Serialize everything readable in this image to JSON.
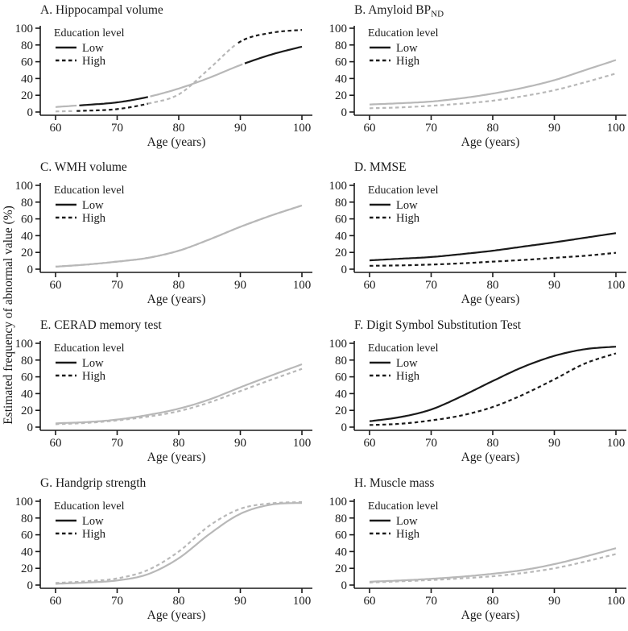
{
  "figure": {
    "y_axis_label": "Estimated frequency of abnormal value (%)",
    "x_axis_label": "Age (years)",
    "legend_title": "Education level",
    "series_labels": {
      "low": "Low",
      "high": "High"
    },
    "colors": {
      "black": "#1a1a1a",
      "gray": "#b8b8b8",
      "background": "#ffffff",
      "text": "#1a1a1a"
    }
  },
  "chart_data": {
    "type": "line",
    "layout": "4x2-small-multiples",
    "shared": {
      "xlabel": "Age (years)",
      "ylabel": "Estimated frequency of abnormal value (%)",
      "ages": [
        60,
        65,
        70,
        75,
        80,
        85,
        90,
        95,
        100
      ],
      "x_ticks": [
        60,
        70,
        80,
        90,
        100
      ],
      "y_ticks": [
        0,
        20,
        40,
        60,
        80,
        100
      ],
      "xlim": [
        60,
        100
      ],
      "ylim": [
        0,
        100
      ],
      "grid": false,
      "legend": {
        "title": "Education level",
        "position": "top-left",
        "entries": [
          {
            "label": "Low",
            "line_style": "solid",
            "key_color": "black"
          },
          {
            "label": "High",
            "line_style": "dashed",
            "key_color": "black"
          }
        ]
      }
    },
    "panels": [
      {
        "id": "A",
        "title": "A. Hippocampal volume",
        "title_subscript": "",
        "series": [
          {
            "name": "Low",
            "line_style": "solid",
            "values": [
              6,
              8.5,
              11.5,
              18,
              28,
              41,
              56,
              68.5,
              78
            ],
            "color_segments": [
              {
                "from": 60,
                "to": 63.8,
                "color": "gray"
              },
              {
                "from": 63.8,
                "to": 75.2,
                "color": "black"
              },
              {
                "from": 75.2,
                "to": 90.5,
                "color": "gray"
              },
              {
                "from": 90.5,
                "to": 100,
                "color": "black"
              }
            ]
          },
          {
            "name": "High",
            "line_style": "dashed",
            "values": [
              0.7,
              1.6,
              3.5,
              10,
              21,
              52,
              84,
              94.5,
              98
            ],
            "color_segments": [
              {
                "from": 60,
                "to": 63.2,
                "color": "gray"
              },
              {
                "from": 63.2,
                "to": 75,
                "color": "black"
              },
              {
                "from": 75,
                "to": 89.3,
                "color": "gray"
              },
              {
                "from": 89.3,
                "to": 100,
                "color": "black"
              }
            ]
          }
        ]
      },
      {
        "id": "B",
        "title": "B. Amyloid BP",
        "title_subscript": "ND",
        "series": [
          {
            "name": "Low",
            "line_style": "solid",
            "color": "gray",
            "values": [
              9,
              10.5,
              12.5,
              16.5,
              22,
              29,
              38,
              50,
              62
            ]
          },
          {
            "name": "High",
            "line_style": "dashed",
            "color": "gray",
            "values": [
              4.5,
              5.5,
              7.5,
              10,
              13.5,
              19,
              26,
              35.5,
              46
            ]
          }
        ]
      },
      {
        "id": "C",
        "title": "C. WMH volume",
        "title_subscript": "",
        "note": "High curve overlaps Low curve exactly",
        "series": [
          {
            "name": "Low",
            "line_style": "solid",
            "color": "gray",
            "values": [
              3,
              5.5,
              9,
              13.5,
              22,
              35.5,
              50.5,
              64,
              76
            ]
          },
          {
            "name": "High",
            "line_style": "dashed",
            "color": "gray",
            "values": [
              3,
              5.5,
              9,
              13.5,
              22,
              35.5,
              50.5,
              64,
              76
            ]
          }
        ]
      },
      {
        "id": "D",
        "title": "D. MMSE",
        "title_subscript": "",
        "series": [
          {
            "name": "Low",
            "line_style": "solid",
            "color": "black",
            "values": [
              10.5,
              12.5,
              14.5,
              18,
              22,
              27,
              32,
              37.5,
              43
            ]
          },
          {
            "name": "High",
            "line_style": "dashed",
            "color": "black",
            "values": [
              4,
              4.5,
              5.5,
              7,
              9,
              11,
              13.5,
              16,
              19.5
            ]
          }
        ]
      },
      {
        "id": "E",
        "title": "E. CERAD memory test",
        "title_subscript": "",
        "series": [
          {
            "name": "Low",
            "line_style": "solid",
            "color": "gray",
            "values": [
              4.5,
              6,
              9,
              14.5,
              22,
              33,
              47.5,
              61.5,
              75
            ]
          },
          {
            "name": "High",
            "line_style": "dashed",
            "color": "gray",
            "values": [
              3.5,
              5,
              8,
              12.5,
              19,
              29.5,
              43,
              56.5,
              69.5
            ]
          }
        ]
      },
      {
        "id": "F",
        "title": "F. Digit Symbol Substitution Test",
        "title_subscript": "",
        "series": [
          {
            "name": "Low",
            "line_style": "solid",
            "color": "black",
            "values": [
              7,
              12,
              21,
              37,
              55,
              72,
              85,
              93,
              96
            ]
          },
          {
            "name": "High",
            "line_style": "dashed",
            "color": "black",
            "values": [
              2.5,
              4,
              8,
              14,
              24,
              39,
              57,
              76,
              88
            ]
          }
        ]
      },
      {
        "id": "G",
        "title": "G. Handgrip strength",
        "title_subscript": "",
        "series": [
          {
            "name": "Low",
            "line_style": "solid",
            "color": "gray",
            "values": [
              1.5,
              3,
              5.5,
              13,
              32,
              61,
              85,
              96,
              98
            ]
          },
          {
            "name": "High",
            "line_style": "dashed",
            "color": "gray",
            "values": [
              2.5,
              4.5,
              8,
              18,
              40,
              71,
              91,
              97.5,
              99
            ]
          }
        ]
      },
      {
        "id": "H",
        "title": "H. Muscle mass",
        "title_subscript": "",
        "series": [
          {
            "name": "Low",
            "line_style": "solid",
            "color": "gray",
            "values": [
              4,
              5.5,
              7.5,
              10,
              13.5,
              18,
              25,
              34,
              44
            ]
          },
          {
            "name": "High",
            "line_style": "dashed",
            "color": "gray",
            "values": [
              3,
              4.5,
              6,
              8,
              10.5,
              14.5,
              20,
              28,
              37
            ]
          }
        ]
      }
    ]
  }
}
